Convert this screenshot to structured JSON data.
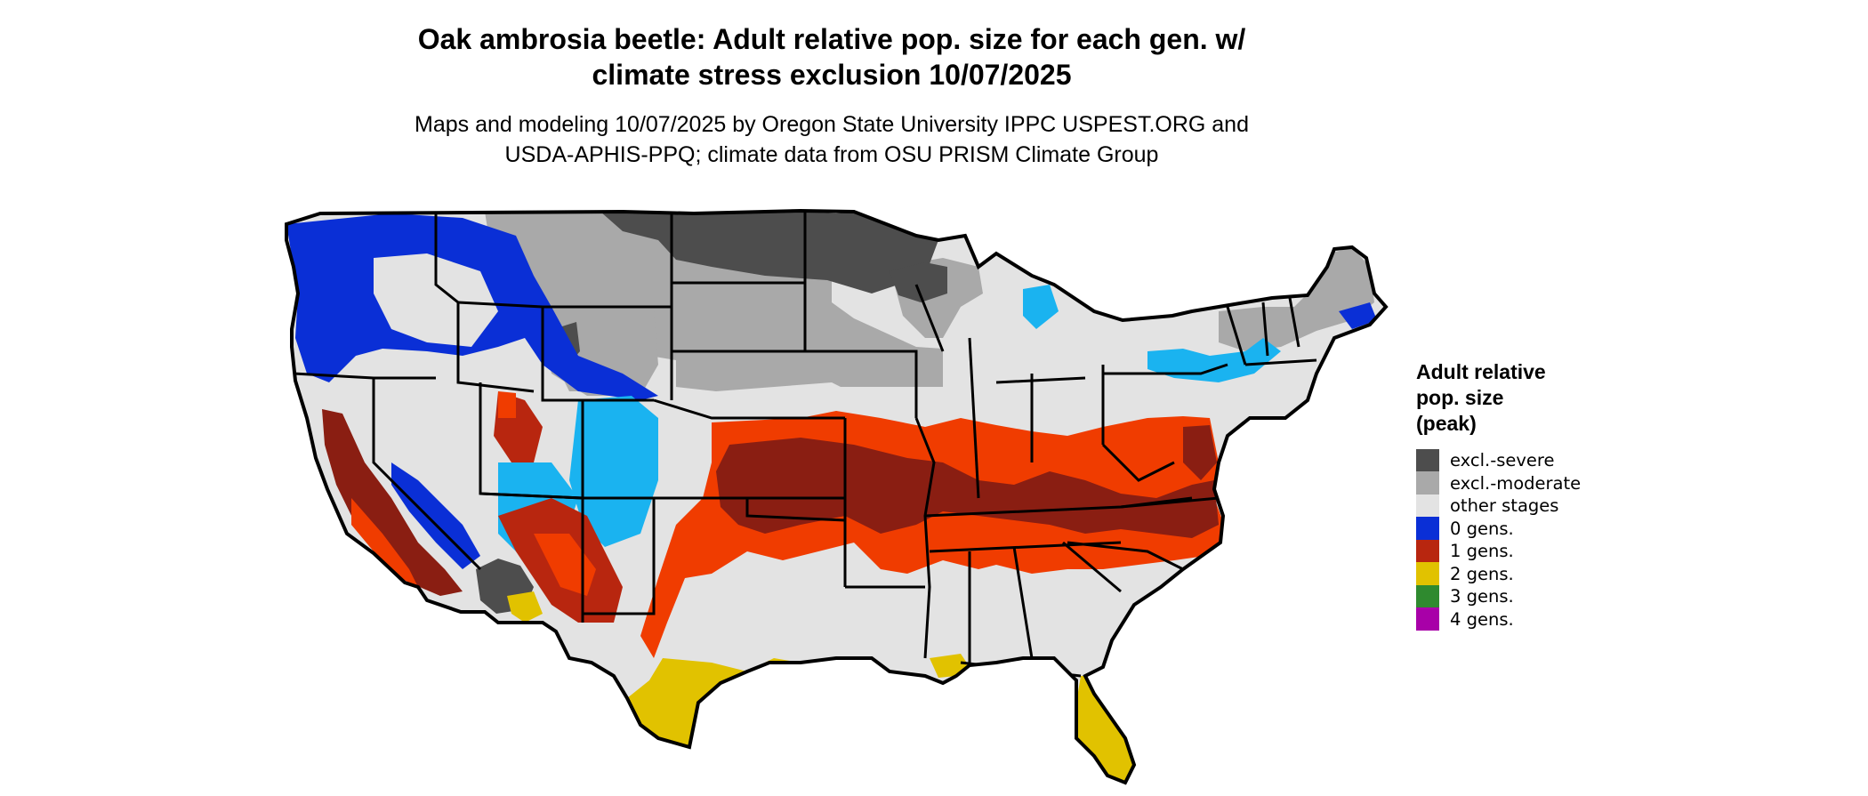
{
  "title_line1": "Oak ambrosia beetle: Adult relative pop. size for each gen. w/",
  "title_line2": "climate stress exclusion 10/07/2025",
  "subtitle_line1": "Maps and modeling 10/07/2025 by Oregon State University IPPC USPEST.ORG and",
  "subtitle_line2": "USDA-APHIS-PPQ; climate data from OSU PRISM Climate Group",
  "legend": {
    "title_line1": "Adult relative",
    "title_line2": "pop. size",
    "title_line3": "(peak)",
    "items": [
      {
        "label": "excl.-severe",
        "color": "#4d4d4d"
      },
      {
        "label": "excl.-moderate",
        "color": "#a9a9a9"
      },
      {
        "label": "other stages",
        "color": "#e3e3e3"
      },
      {
        "label": "0 gens.",
        "color": "#0a2fd6"
      },
      {
        "label": "1 gens.",
        "color": "#b8260f"
      },
      {
        "label": "2 gens.",
        "color": "#e1c200"
      },
      {
        "label": "3 gens.",
        "color": "#2f8a2f"
      },
      {
        "label": "4 gens.",
        "color": "#a800a8"
      }
    ]
  },
  "map_colors": {
    "orange": "#f03c00",
    "dark_red": "#8a1e12",
    "light_blue": "#1ab3f0",
    "yellow": "#e1c200",
    "border": "#000000"
  }
}
